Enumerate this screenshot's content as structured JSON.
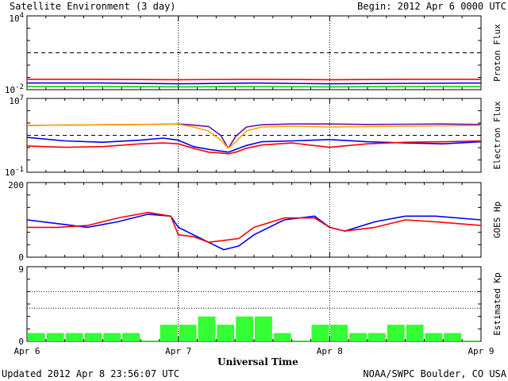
{
  "header": {
    "title": "Satellite Environment (3 day)",
    "begin": "Begin:  2012 Apr 6 0000 UTC"
  },
  "footer": {
    "updated": "Updated 2012 Apr  8 23:56:07 UTC",
    "credit": "NOAA/SWPC Boulder, CO USA",
    "xlabel": "Universal Time"
  },
  "x_ticks": [
    "Apr 6",
    "Apr 7",
    "Apr 8",
    "Apr 9"
  ],
  "chart_data": [
    {
      "type": "line",
      "ylabel": "Proton Flux",
      "y_scale": "log",
      "ylim": [
        0.01,
        10000
      ],
      "y_ticks": [
        "10^4",
        "10^-2"
      ],
      "threshold": 10,
      "x": [
        0,
        0.5,
        1,
        1.5,
        2,
        2.5,
        3
      ],
      "series": [
        {
          "color": "#ff0000",
          "values": [
            0.07,
            0.07,
            0.065,
            0.07,
            0.065,
            0.07,
            0.07
          ]
        },
        {
          "color": "#0000ff",
          "values": [
            0.035,
            0.035,
            0.03,
            0.035,
            0.03,
            0.033,
            0.035
          ]
        },
        {
          "color": "#00cc00",
          "values": [
            0.018,
            0.018,
            0.017,
            0.018,
            0.017,
            0.018,
            0.018
          ]
        }
      ]
    },
    {
      "type": "line",
      "ylabel": "Electron Flux",
      "y_scale": "log",
      "ylim": [
        0.1,
        10000000
      ],
      "y_ticks": [
        "10^7",
        "10^-1"
      ],
      "threshold": 1000,
      "x": [
        0,
        0.25,
        0.5,
        0.75,
        0.9,
        1.0,
        1.1,
        1.2,
        1.28,
        1.33,
        1.38,
        1.45,
        1.55,
        1.75,
        2.0,
        2.25,
        2.5,
        2.75,
        3.0
      ],
      "series": [
        {
          "color": "#6a0dad",
          "values": [
            12000,
            13000,
            14000,
            15000,
            16000,
            17000,
            13000,
            9000,
            1000,
            40,
            800,
            8000,
            14000,
            17000,
            17000,
            15000,
            16000,
            17000,
            15000
          ]
        },
        {
          "color": "#ffa500",
          "values": [
            12000,
            13000,
            14000,
            15000,
            16000,
            16000,
            8000,
            3000,
            300,
            40,
            200,
            3000,
            8000,
            10000,
            8000,
            9000,
            10000,
            11000,
            12000
          ]
        },
        {
          "color": "#0000ff",
          "values": [
            600,
            250,
            180,
            300,
            500,
            300,
            60,
            30,
            20,
            15,
            30,
            80,
            200,
            250,
            350,
            200,
            150,
            120,
            200
          ]
        },
        {
          "color": "#ff0000",
          "values": [
            70,
            50,
            60,
            120,
            150,
            120,
            40,
            15,
            12,
            10,
            15,
            40,
            90,
            150,
            50,
            120,
            180,
            200,
            250
          ]
        }
      ]
    },
    {
      "type": "line",
      "ylabel": "GOES Hp",
      "ylim": [
        0,
        200
      ],
      "y_ticks": [
        "200",
        "0"
      ],
      "x": [
        0,
        0.2,
        0.4,
        0.6,
        0.8,
        0.95,
        1.0,
        1.1,
        1.2,
        1.3,
        1.4,
        1.5,
        1.7,
        1.9,
        2.0,
        2.1,
        2.3,
        2.5,
        2.7,
        3.0
      ],
      "series": [
        {
          "color": "#0000ff",
          "values": [
            100,
            90,
            80,
            95,
            115,
            110,
            80,
            60,
            40,
            20,
            30,
            60,
            100,
            110,
            80,
            70,
            95,
            110,
            110,
            100
          ]
        },
        {
          "color": "#ff0000",
          "values": [
            80,
            80,
            85,
            105,
            120,
            110,
            60,
            55,
            40,
            45,
            50,
            80,
            105,
            105,
            80,
            70,
            80,
            100,
            95,
            85
          ]
        }
      ]
    },
    {
      "type": "bar",
      "ylabel": "Estimated Kp",
      "ylim": [
        0,
        9
      ],
      "y_ticks": [
        "9",
        "0"
      ],
      "gridlines": [
        4,
        6
      ],
      "bar_color": "#33ff33",
      "categories": [
        "Apr 6 00",
        "Apr 6 03",
        "Apr 6 06",
        "Apr 6 09",
        "Apr 6 12",
        "Apr 6 15",
        "Apr 6 18",
        "Apr 6 21",
        "Apr 7 00",
        "Apr 7 03",
        "Apr 7 06",
        "Apr 7 09",
        "Apr 7 12",
        "Apr 7 15",
        "Apr 7 18",
        "Apr 7 21",
        "Apr 8 00",
        "Apr 8 03",
        "Apr 8 06",
        "Apr 8 09",
        "Apr 8 12",
        "Apr 8 15",
        "Apr 8 18",
        "Apr 8 21"
      ],
      "values": [
        1,
        1,
        1,
        1,
        1,
        1,
        0.1,
        2,
        2,
        3,
        2,
        3,
        3,
        1,
        0.1,
        2,
        2,
        1,
        1,
        2,
        2,
        1,
        1,
        0.1
      ]
    }
  ]
}
